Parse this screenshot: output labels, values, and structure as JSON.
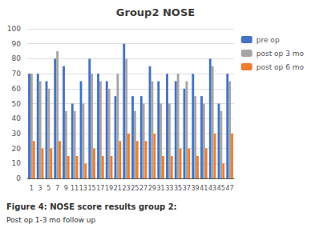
{
  "chart_data": {
    "type": "bar",
    "title": "Group2 NOSE",
    "categories": [
      "1",
      "3",
      "5",
      "7",
      "9",
      "11",
      "13",
      "15",
      "17",
      "19",
      "21",
      "23",
      "25",
      "27",
      "29",
      "31",
      "33",
      "35",
      "37",
      "39",
      "41",
      "43",
      "45",
      "47"
    ],
    "series": [
      {
        "name": "pre op",
        "color": "#4472c4",
        "values": [
          70,
          70,
          65,
          80,
          75,
          50,
          65,
          80,
          70,
          65,
          55,
          90,
          55,
          55,
          75,
          65,
          70,
          65,
          60,
          70,
          55,
          80,
          50,
          70
        ]
      },
      {
        "name": "post op 3 mo",
        "color": "#a5a5a5",
        "values": [
          70,
          65,
          60,
          85,
          45,
          45,
          50,
          70,
          65,
          60,
          70,
          80,
          45,
          50,
          65,
          50,
          50,
          70,
          65,
          55,
          50,
          75,
          45,
          65
        ]
      },
      {
        "name": "post op 6 mo",
        "color": "#ed7d31",
        "values": [
          25,
          20,
          20,
          25,
          15,
          15,
          10,
          20,
          15,
          15,
          25,
          30,
          25,
          25,
          30,
          15,
          15,
          20,
          20,
          15,
          20,
          30,
          10,
          30
        ]
      }
    ],
    "ylim": [
      0,
      100
    ],
    "yticks": [
      0,
      10,
      20,
      30,
      40,
      50,
      60,
      70,
      80,
      90,
      100
    ],
    "grid": true,
    "legend": "right",
    "annotations": [
      "Figure 4: NOSE score results group 2:",
      "Post op 1-3 mo follow up"
    ]
  }
}
